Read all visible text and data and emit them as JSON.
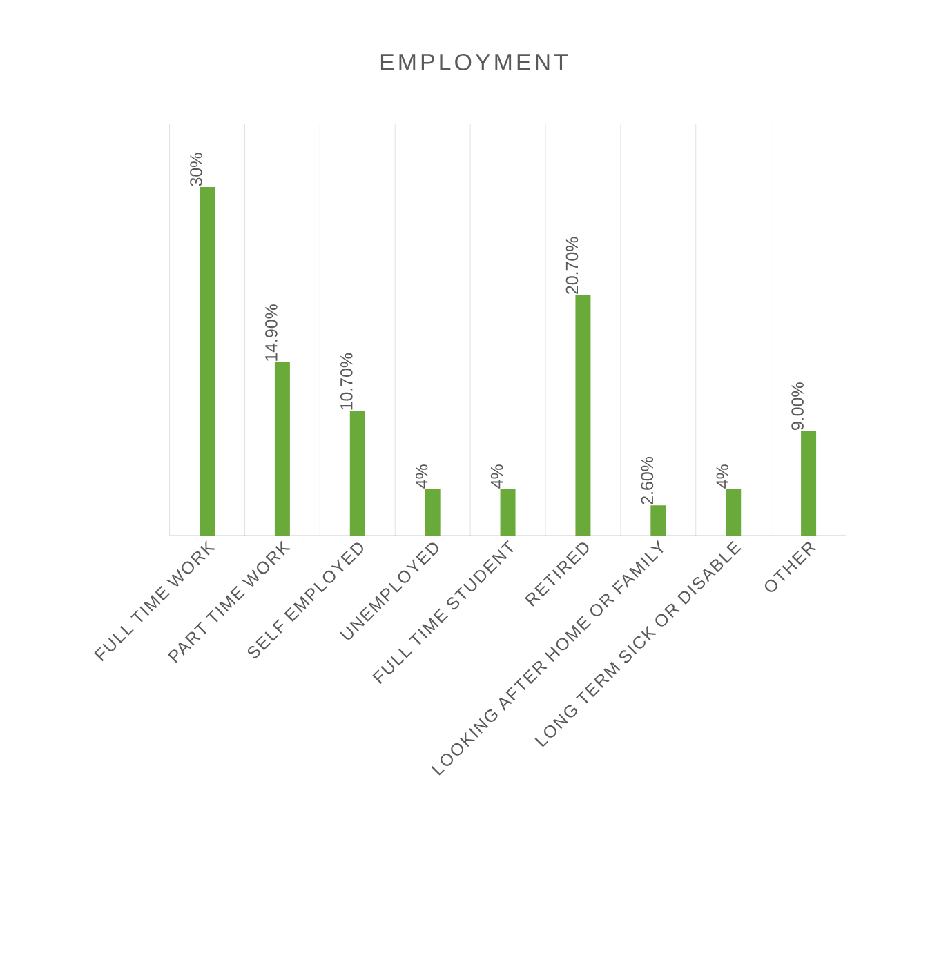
{
  "chart_data": {
    "type": "bar",
    "title": "EMPLOYMENT",
    "categories": [
      "FULL TIME WORK",
      "PART TIME WORK",
      "SELF EMPLOYED",
      "UNEMPLOYED",
      "FULL TIME STUDENT",
      "RETIRED",
      "LOOKING AFTER HOME OR FAMILY",
      "LONG TERM SICK OR DISABLE",
      "OTHER"
    ],
    "values": [
      30,
      14.9,
      10.7,
      4,
      4,
      20.7,
      2.6,
      4,
      9.0
    ],
    "value_labels": [
      "30%",
      "14.90%",
      "10.70%",
      "4%",
      "4%",
      "20.70%",
      "2.60%",
      "4%",
      "9.00%"
    ],
    "color": "#6aaa3a",
    "grid": "x"
  }
}
